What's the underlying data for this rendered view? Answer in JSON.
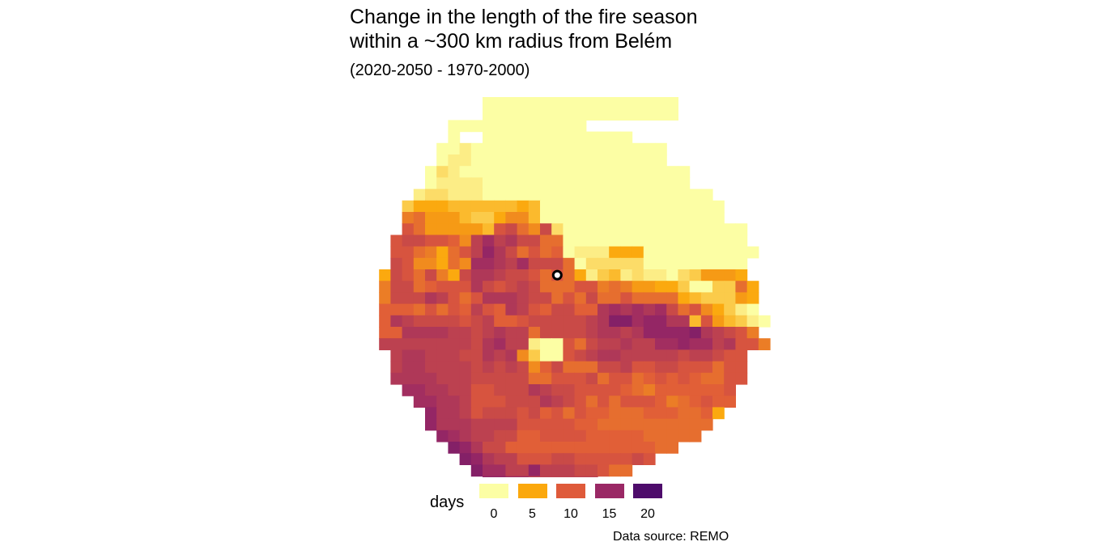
{
  "title": "Change in the length of the fire season\nwithin a ~300 km radius from Belém",
  "subtitle": "(2020-2050 - 1970-2000)",
  "legend": {
    "title": "days",
    "items": [
      {
        "label": "0",
        "color": "#fcfea4"
      },
      {
        "label": "5",
        "color": "#fba80d"
      },
      {
        "label": "10",
        "color": "#df5a3a"
      },
      {
        "label": "15",
        "color": "#9a2865"
      },
      {
        "label": "20",
        "color": "#4e0c6b"
      }
    ]
  },
  "source": "Data source: REMO",
  "chart_data": {
    "type": "heatmap",
    "value_range": [
      0,
      23
    ],
    "center_point": [
      16,
      15
    ],
    "rows": [
      "..........#################.........",
      "..........#################.........",
      ".......000000000000.................",
      ".......0..0000000000000.............",
      "......00100000000000000000..........",
      "......01100000000000000000..........",
      ".....02100000000000000000000........",
      ".....01111000000000000000000........",
      "....12211100000000000000000000......",
      "...3555444444540000000000000000.....",
      "...8966643357740000000000000000.....",
      "...B9666664BC97C20000000000000000...",
      "..BCCBBA7DFDECC990000000000000000...",
      "..BB9859BDGEC9B9A01115550000000000..",
      "..CB77597FFEDFCCC9022222000000000..",
      ".5CB9C85CEEDCCB9B9513412110236665..",
      ".8CC9ABBBECBCDC999BB89866553003395..",
      ".8CCCEDB9BEEEDCC9B9C99B99995433365.",
      ".AAA9B9BADBAEDBACCAAEFEFEFC9B75310.",
      ".AEDCCCCBCDAABCCCCCDEHHFGGEE4B64310.",
      ".AAEEEEDDCDEDD9CCCCDEEDEGGGGHEDCB8.",
      ".DDDDDDDDCEFDD100B9CDDEDDFFGFFDEBB8.",
      "..DEEDDDCCEDE7300BCDEEDDDDDCDDCBB..",
      "..DEEDDDDCDCDC7AC999CCDBBCCBBB9BB..",
      "..EEEEDDDCCCCC99BBBC9BB9ABABA99BB..",
      "...FFEEDDBBCCCEDCCBBBBA98AAAAAAB...",
      "....FFEEDBBBCCCEDCB9B9BBBA89ABAA...",
      ".....GEEDBCCCBCAB9BAA999AAA99A5....",
      ".....GEEEDDDDBBBBBAA9999999999.....",
      "......GFEDDCCAABBBBAAAAA99999......",
      ".......HGECCAAAAAAAAAAAAA99........",
      "........HGEDDBBBCCBBBBBCB.........",
      ".........HFFDDGDDDCCB99...........",
      "..........GGFFDDDDDD..............."
    ],
    "legend_ticks": [
      0,
      5,
      10,
      15,
      20
    ]
  }
}
